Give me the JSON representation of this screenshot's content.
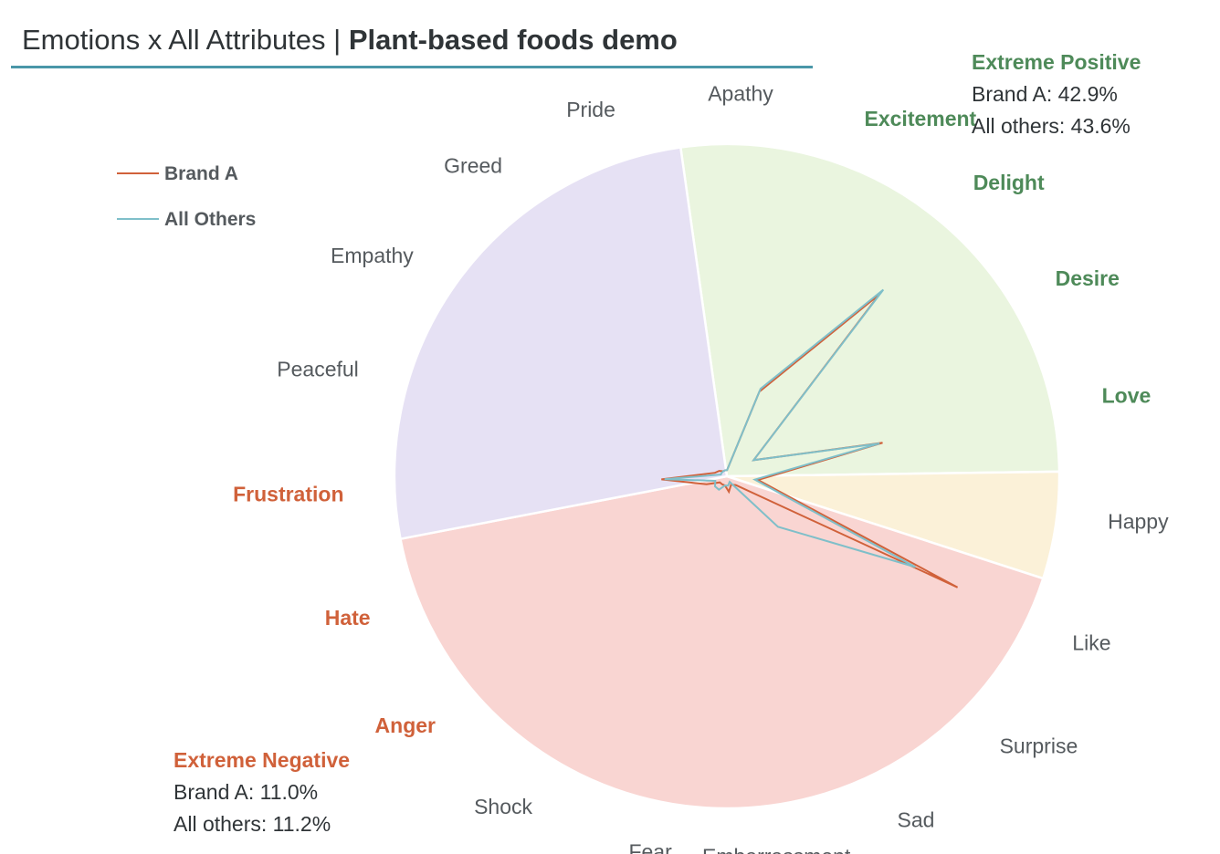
{
  "title": {
    "regular": "Emotions x All Attributes | ",
    "bold": "Plant-based foods demo"
  },
  "chart_data": {
    "type": "radar-over-pie",
    "pie": [
      {
        "group": "extreme_positive",
        "value": 27.0,
        "color": "#eaf5df"
      },
      {
        "group": "mild_positive",
        "value": 5.2,
        "color": "#fbf1d8"
      },
      {
        "group": "negative",
        "value": 42.0,
        "color": "#f9d5d2"
      },
      {
        "group": "neutral",
        "value": 25.8,
        "color": "#e6e1f4"
      }
    ],
    "categories": [
      "Excitement",
      "Delight",
      "Desire",
      "Love",
      "Happy",
      "Like",
      "Surprise",
      "Sad",
      "Embarrassment",
      "Fear",
      "Shock",
      "Anger",
      "Hate",
      "Frustration",
      "Peaceful",
      "Empathy",
      "Greed",
      "Pride",
      "Apathy"
    ],
    "category_groups": [
      "extreme_positive",
      "extreme_positive",
      "extreme_positive",
      "extreme_positive",
      "neutral",
      "neutral",
      "neutral",
      "neutral",
      "neutral",
      "neutral",
      "neutral",
      "extreme_negative",
      "extreme_negative",
      "extreme_negative",
      "neutral",
      "neutral",
      "neutral",
      "neutral",
      "neutral"
    ],
    "series": [
      {
        "name": "Brand A",
        "color": "#d0613a",
        "values": [
          0.29,
          0.76,
          0.1,
          0.51,
          0.1,
          0.82,
          0.04,
          0.03,
          0.05,
          0.03,
          0.03,
          0.03,
          0.07,
          0.21,
          0.04,
          0.03,
          0.02,
          0.02,
          0.02
        ]
      },
      {
        "name": "All Others",
        "color": "#7fbfc9",
        "values": [
          0.3,
          0.78,
          0.1,
          0.5,
          0.09,
          0.67,
          0.23,
          0.02,
          0.03,
          0.03,
          0.05,
          0.05,
          0.04,
          0.2,
          0.02,
          0.02,
          0.02,
          0.02,
          0.02
        ]
      }
    ],
    "rmax": 1.0
  },
  "legend": [
    {
      "label": "Brand A",
      "color": "#d0613a"
    },
    {
      "label": "All Others",
      "color": "#7fbfc9"
    }
  ],
  "annotations": {
    "extreme_positive": {
      "title": "Extreme Positive",
      "lines": [
        "Brand A: 42.9%",
        "All others: 43.6%"
      ],
      "color": "#4e8a59"
    },
    "extreme_negative": {
      "title": "Extreme Negative",
      "lines": [
        "Brand A: 11.0%",
        "All others: 11.2%"
      ],
      "color": "#d0613a"
    }
  }
}
